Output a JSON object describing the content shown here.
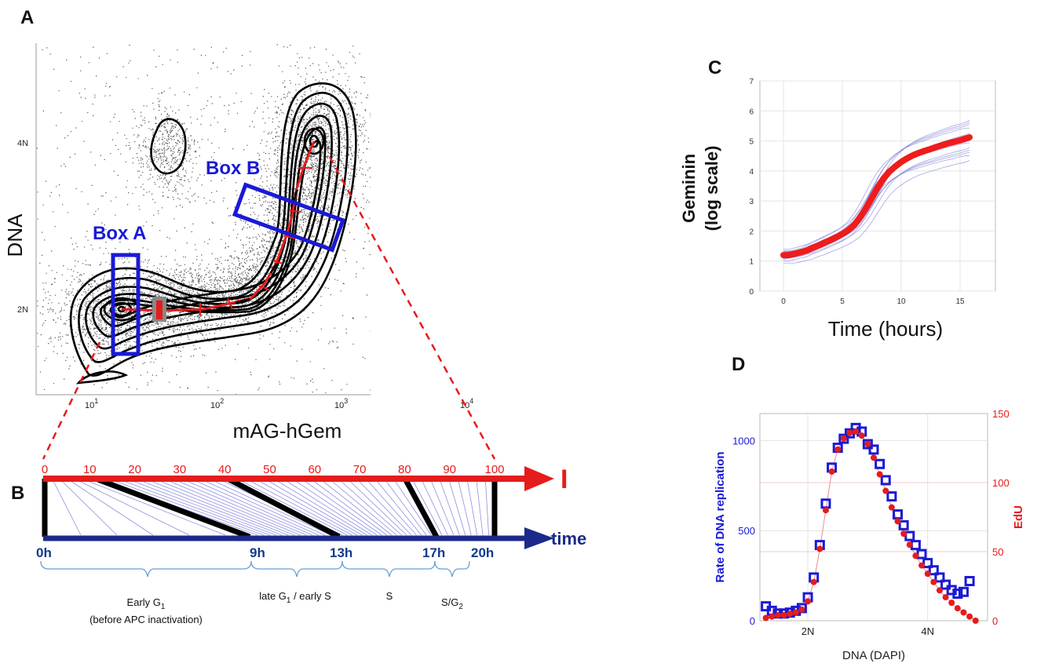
{
  "panels": {
    "a": "A",
    "b": "B",
    "c": "C",
    "d": "D"
  },
  "panel_a": {
    "y_label": "DNA",
    "x_label": "mAG-hGem",
    "y_ticks": [
      "4N",
      "2N"
    ],
    "x_ticks": [
      {
        "base": "10",
        "exp": "1"
      },
      {
        "base": "10",
        "exp": "2"
      },
      {
        "base": "10",
        "exp": "3"
      },
      {
        "base": "10",
        "exp": "4"
      }
    ],
    "box_a": "Box A",
    "box_b": "Box B",
    "colors": {
      "box": "#1a1ad6",
      "trajectory": "#e51c1c",
      "contour": "#000000",
      "dots": "#555555"
    }
  },
  "panel_b": {
    "top_axis_label": "I",
    "top_ticks": [
      "0",
      "10",
      "20",
      "30",
      "40",
      "50",
      "60",
      "70",
      "80",
      "90",
      "100"
    ],
    "bottom_axis_label": "time",
    "bottom_ticks": [
      "0h",
      "9h",
      "13h",
      "17h",
      "20h"
    ],
    "phase_early_g1": "Early G",
    "phase_early_g1_sub": "1",
    "phase_early_g1_note": "(before APC inactivation)",
    "phase_late_g1_a": "late G",
    "phase_late_g1_sub": "1",
    "phase_late_g1_b": " / early S",
    "phase_s": "S",
    "phase_sg2_a": "S/G",
    "phase_sg2_sub": "2",
    "colors": {
      "red_axis": "#e51c1c",
      "blue_axis": "#1b2a8a",
      "thin_lines": "#8f8fe0"
    }
  },
  "chart_data": [
    {
      "type": "line",
      "title": "",
      "xlabel": "Time (hours)",
      "ylabel_line1": "Geminin",
      "ylabel_line2": "(log scale)",
      "xlim": [
        -2,
        18
      ],
      "ylim": [
        0,
        7
      ],
      "x_ticks": [
        "0",
        "5",
        "10",
        "15"
      ],
      "y_ticks": [
        "0",
        "1",
        "2",
        "3",
        "4",
        "5",
        "6",
        "7"
      ],
      "grid": true,
      "series": [
        {
          "x": [
            0,
            0.5,
            1,
            1.5,
            2,
            2.5,
            3,
            3.5,
            4,
            4.5,
            5,
            5.5,
            6,
            6.5,
            7,
            7.5,
            8,
            8.5,
            9,
            9.5,
            10,
            10.5,
            11,
            11.5,
            12,
            12.5,
            13,
            13.5,
            14,
            14.5,
            15,
            15.5,
            15.8
          ],
          "y": [
            1.2,
            1.2,
            1.25,
            1.3,
            1.35,
            1.45,
            1.52,
            1.62,
            1.7,
            1.8,
            1.9,
            2.03,
            2.2,
            2.45,
            2.75,
            3.1,
            3.45,
            3.75,
            3.98,
            4.15,
            4.3,
            4.42,
            4.52,
            4.6,
            4.67,
            4.73,
            4.8,
            4.86,
            4.92,
            4.97,
            5.02,
            5.08,
            5.12
          ],
          "color": "#ee1c1c"
        }
      ],
      "colors": {
        "mean": "#ee1c1c",
        "tracks": "#8080d8"
      }
    },
    {
      "type": "scatter",
      "title": "",
      "xlabel": "DNA (DAPI)",
      "ylabel_left": "Rate of DNA replication",
      "ylabel_right": "EdU",
      "x_ticks": [
        "2N",
        "4N"
      ],
      "xlim": [
        1.2,
        5.0
      ],
      "ylim_left": [
        0,
        1150
      ],
      "ylim_right": [
        0,
        150
      ],
      "y_ticks_left": [
        "0",
        "500",
        "1000"
      ],
      "y_ticks_right": [
        "0",
        "50",
        "100",
        "150"
      ],
      "grid": true,
      "series": [
        {
          "axis": "left",
          "marker": "open-square",
          "color": "#1a1ad6",
          "x": [
            1.3,
            1.4,
            1.5,
            1.6,
            1.7,
            1.8,
            1.9,
            2.0,
            2.1,
            2.2,
            2.3,
            2.4,
            2.5,
            2.6,
            2.7,
            2.8,
            2.9,
            3.0,
            3.1,
            3.2,
            3.3,
            3.4,
            3.5,
            3.6,
            3.7,
            3.8,
            3.9,
            4.0,
            4.1,
            4.2,
            4.3,
            4.4,
            4.5,
            4.6,
            4.7
          ],
          "y": [
            80,
            55,
            40,
            40,
            45,
            55,
            70,
            130,
            240,
            420,
            650,
            850,
            960,
            1010,
            1040,
            1070,
            1050,
            980,
            950,
            870,
            780,
            690,
            590,
            530,
            470,
            420,
            370,
            320,
            280,
            240,
            200,
            170,
            150,
            160,
            220
          ]
        },
        {
          "axis": "right",
          "marker": "filled-circle",
          "color": "#e51c1c",
          "x": [
            1.3,
            1.4,
            1.5,
            1.6,
            1.7,
            1.8,
            1.9,
            2.0,
            2.1,
            2.2,
            2.3,
            2.4,
            2.5,
            2.6,
            2.7,
            2.8,
            2.9,
            3.0,
            3.1,
            3.2,
            3.3,
            3.4,
            3.5,
            3.6,
            3.7,
            3.8,
            3.9,
            4.0,
            4.1,
            4.2,
            4.3,
            4.4,
            4.5,
            4.6,
            4.7,
            4.8
          ],
          "y": [
            2,
            3,
            4,
            4,
            5,
            6,
            8,
            14,
            28,
            52,
            80,
            108,
            124,
            132,
            136,
            137,
            134,
            128,
            118,
            106,
            94,
            82,
            72,
            63,
            55,
            47,
            40,
            34,
            28,
            22,
            17,
            13,
            9,
            6,
            3,
            0
          ]
        }
      ]
    }
  ]
}
